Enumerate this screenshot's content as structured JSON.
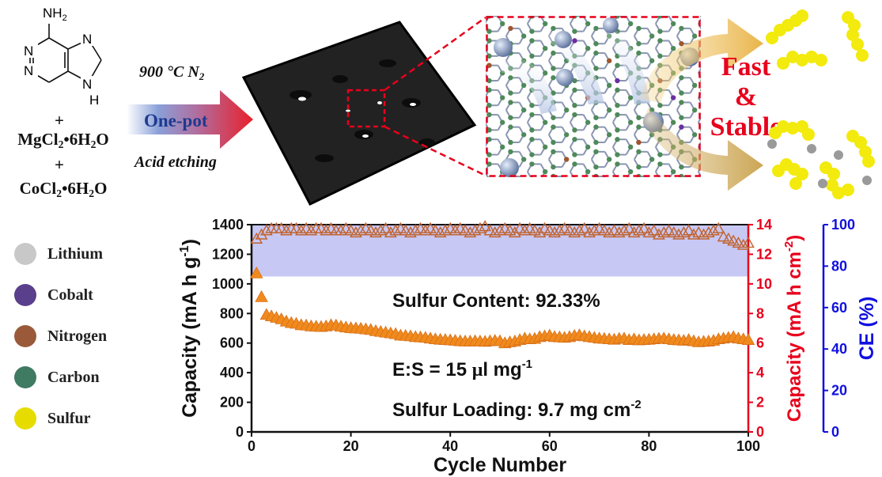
{
  "molecule": {
    "nh2": "NH",
    "nh2_sub": "2",
    "n1": "N",
    "n2": "N",
    "n3": "N",
    "n4": "N",
    "nh": "N",
    "h": "H"
  },
  "reagents": {
    "plus1": "+",
    "mgcl2_a": "MgCl",
    "mgcl2_sub": "2",
    "mgcl2_b": "•6H",
    "mgcl2_sub2": "2",
    "mgcl2_c": "O",
    "plus2": "+",
    "cocl2_a": "CoCl",
    "cocl2_sub": "2",
    "cocl2_b": "•6H",
    "cocl2_sub2": "2",
    "cocl2_c": "O"
  },
  "process": {
    "temp": "900 °C  N",
    "temp_sub": "2",
    "arrow_label": "One-pot",
    "etch": "Acid etching"
  },
  "result": {
    "fast": "Fast",
    "amp": "&",
    "stable": "Stable"
  },
  "legend": [
    {
      "label": "Lithium",
      "color": "#c8c8c8"
    },
    {
      "label": "Cobalt",
      "color": "#5a3f8c"
    },
    {
      "label": "Nitrogen",
      "color": "#9a5a3a"
    },
    {
      "label": "Carbon",
      "color": "#3f7a63"
    },
    {
      "label": "Sulfur",
      "color": "#e6dc00"
    }
  ],
  "chart_data": {
    "type": "scatter",
    "xlabel": "Cycle Number",
    "ylabel_left": "Capacity (mA h g",
    "ylabel_left_sup": "-1",
    "ylabel_left_end": ")",
    "ylabel_right1": "Capacity (mA h cm",
    "ylabel_right1_sup": "-2",
    "ylabel_right1_end": ")",
    "ylabel_right2": "CE (%)",
    "xlim": [
      0,
      100
    ],
    "ylim_left": [
      0,
      1400
    ],
    "ylim_right1": [
      0,
      14
    ],
    "ylim_right2": [
      0,
      100
    ],
    "x_ticks": [
      "0",
      "20",
      "40",
      "60",
      "80",
      "100"
    ],
    "yl_ticks": [
      "0",
      "200",
      "400",
      "600",
      "800",
      "1000",
      "1200",
      "1400"
    ],
    "yr1_ticks": [
      "0",
      "2",
      "4",
      "6",
      "8",
      "10",
      "12",
      "14"
    ],
    "yr2_ticks": [
      "0",
      "20",
      "40",
      "60",
      "80",
      "100"
    ],
    "ce_band": [
      75,
      100
    ],
    "annotations": {
      "sulfur_content": "Sulfur Content: 92.33%",
      "es_a": "E:S = 15 ",
      "es_mu": "μ",
      "es_b": "l mg",
      "es_sup": "-1",
      "loading_a": "Sulfur Loading: 9.7 mg cm",
      "loading_sup": "-2"
    },
    "series": [
      {
        "name": "capacity",
        "color": "#f08a1c",
        "style": "filled",
        "x": [
          1,
          2,
          3,
          4,
          5,
          6,
          7,
          8,
          9,
          10,
          11,
          12,
          13,
          14,
          15,
          16,
          17,
          18,
          19,
          20,
          21,
          22,
          23,
          24,
          25,
          26,
          27,
          28,
          29,
          30,
          31,
          32,
          33,
          34,
          35,
          36,
          37,
          38,
          39,
          40,
          41,
          42,
          43,
          44,
          45,
          46,
          47,
          48,
          49,
          50,
          51,
          52,
          53,
          54,
          55,
          56,
          57,
          58,
          59,
          60,
          61,
          62,
          63,
          64,
          65,
          66,
          67,
          68,
          69,
          70,
          71,
          72,
          73,
          74,
          75,
          76,
          77,
          78,
          79,
          80,
          81,
          82,
          83,
          84,
          85,
          86,
          87,
          88,
          89,
          90,
          91,
          92,
          93,
          94,
          95,
          96,
          97,
          98,
          99,
          100
        ],
        "y": [
          1070,
          910,
          790,
          780,
          770,
          760,
          745,
          735,
          730,
          720,
          718,
          712,
          710,
          708,
          712,
          720,
          718,
          710,
          705,
          700,
          698,
          696,
          692,
          688,
          680,
          675,
          670,
          665,
          660,
          650,
          648,
          645,
          640,
          638,
          635,
          630,
          625,
          622,
          620,
          618,
          615,
          612,
          610,
          610,
          612,
          610,
          608,
          612,
          615,
          612,
          598,
          605,
          610,
          620,
          630,
          625,
          628,
          640,
          645,
          650,
          640,
          638,
          635,
          640,
          648,
          652,
          645,
          640,
          635,
          630,
          628,
          625,
          622,
          628,
          630,
          620,
          625,
          618,
          620,
          622,
          625,
          628,
          630,
          625,
          620,
          618,
          615,
          620,
          612,
          605,
          608,
          610,
          615,
          625,
          630,
          635,
          640,
          630,
          625,
          620
        ]
      },
      {
        "name": "CE",
        "color": "#c0622c",
        "style": "open",
        "x": [
          1,
          2,
          3,
          4,
          5,
          6,
          7,
          8,
          9,
          10,
          11,
          12,
          13,
          14,
          15,
          16,
          17,
          18,
          19,
          20,
          21,
          22,
          23,
          24,
          25,
          26,
          27,
          28,
          29,
          30,
          31,
          32,
          33,
          34,
          35,
          36,
          37,
          38,
          39,
          40,
          41,
          42,
          43,
          44,
          45,
          46,
          47,
          48,
          49,
          50,
          51,
          52,
          53,
          54,
          55,
          56,
          57,
          58,
          59,
          60,
          61,
          62,
          63,
          64,
          65,
          66,
          67,
          68,
          69,
          70,
          71,
          72,
          73,
          74,
          75,
          76,
          77,
          78,
          79,
          80,
          81,
          82,
          83,
          84,
          85,
          86,
          87,
          88,
          89,
          90,
          91,
          92,
          93,
          94,
          95,
          96,
          97,
          98,
          99,
          100
        ],
        "y": [
          93,
          95,
          97,
          98,
          98,
          98,
          97,
          98,
          98,
          97,
          98,
          97,
          98,
          98,
          97,
          98,
          97,
          97,
          98,
          97,
          96,
          97,
          98,
          97,
          96,
          97,
          98,
          96,
          97,
          98,
          97,
          96,
          97,
          98,
          97,
          98,
          97,
          96,
          97,
          98,
          97,
          98,
          97,
          96,
          97,
          98,
          99,
          97,
          96,
          97,
          98,
          97,
          96,
          98,
          97,
          98,
          97,
          96,
          98,
          97,
          96,
          97,
          98,
          97,
          96,
          97,
          98,
          96,
          97,
          98,
          97,
          96,
          97,
          96,
          97,
          98,
          96,
          97,
          98,
          96,
          97,
          95,
          96,
          97,
          96,
          95,
          96,
          97,
          95,
          96,
          95,
          96,
          97,
          98,
          94,
          93,
          92,
          91,
          90,
          91
        ]
      }
    ]
  }
}
